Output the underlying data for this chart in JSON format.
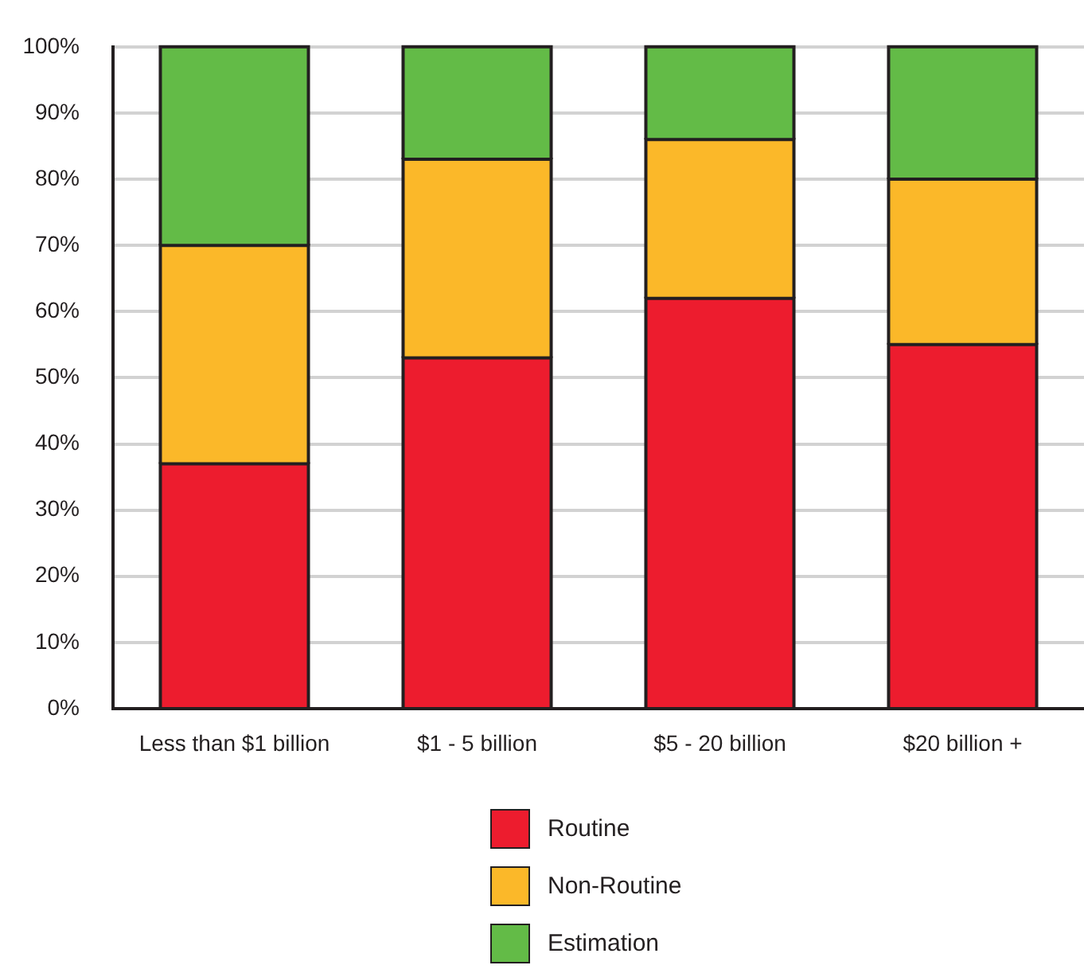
{
  "chart_data": {
    "type": "bar",
    "stacked": true,
    "categories": [
      "Less than $1 billion",
      "$1 - 5 billion",
      "$5 - 20 billion",
      "$20 billion +"
    ],
    "series": [
      {
        "name": "Routine",
        "color": "#ed1c2e",
        "values": [
          37,
          53,
          62,
          55
        ]
      },
      {
        "name": "Non-Routine",
        "color": "#fbb829",
        "values": [
          33,
          30,
          24,
          25
        ]
      },
      {
        "name": "Estimation",
        "color": "#63bb47",
        "values": [
          30,
          17,
          14,
          20
        ]
      }
    ],
    "ylim": [
      0,
      100
    ],
    "yticks": [
      {
        "value": 0,
        "label": "0%"
      },
      {
        "value": 10,
        "label": "10%"
      },
      {
        "value": 20,
        "label": "20%"
      },
      {
        "value": 30,
        "label": "30%"
      },
      {
        "value": 40,
        "label": "40%"
      },
      {
        "value": 50,
        "label": "50%"
      },
      {
        "value": 60,
        "label": "60%"
      },
      {
        "value": 70,
        "label": "70%"
      },
      {
        "value": 80,
        "label": "80%"
      },
      {
        "value": 90,
        "label": "90%"
      },
      {
        "value": 100,
        "label": "100%"
      }
    ],
    "grid": "y",
    "legend": "bottom"
  }
}
